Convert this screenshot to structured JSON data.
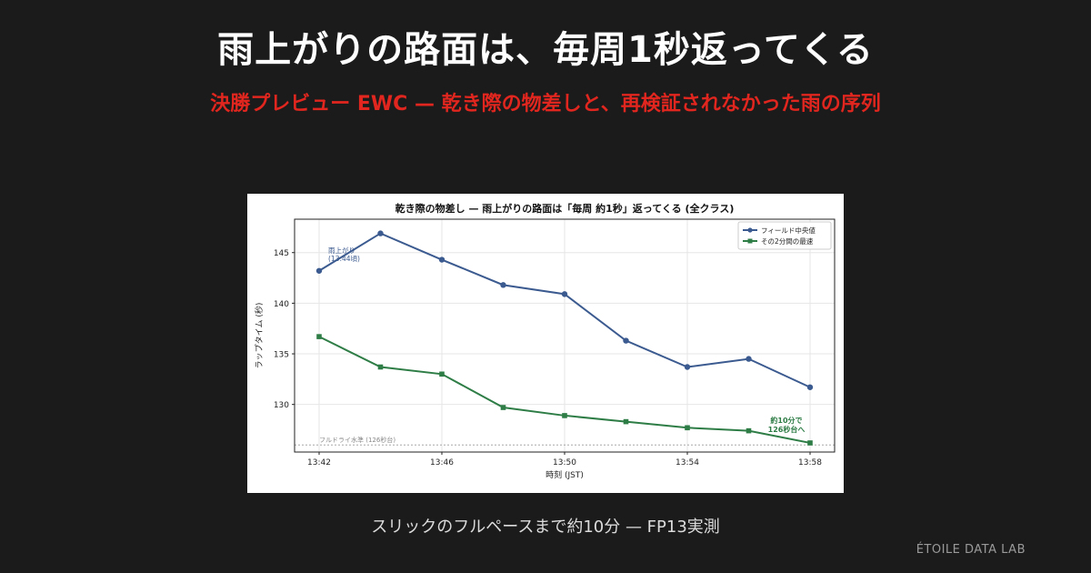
{
  "header": {
    "title": "雨上がりの路面は、毎周1秒返ってくる",
    "subtitle": "決勝プレビュー EWC — 乾き際の物差しと、再検証されなかった雨の序列"
  },
  "caption": "スリックのフルペースまで約10分 — FP13実測",
  "brand": "ÉTOILE DATA LAB",
  "colors": {
    "field_median": "#3b5a8f",
    "fastest": "#2e7d46",
    "baseline": "#999999"
  },
  "chart_data": {
    "type": "line",
    "title": "乾き際の物差し — 雨上がりの路面は「毎周 約1秒」返ってくる (全クラス)",
    "xlabel": "時刻 (JST)",
    "ylabel": "ラップタイム (秒)",
    "x": [
      "13:42",
      "13:44",
      "13:46",
      "13:48",
      "13:50",
      "13:52",
      "13:54",
      "13:56",
      "13:58"
    ],
    "xticks": [
      "13:42",
      "13:46",
      "13:50",
      "13:54",
      "13:58"
    ],
    "yticks": [
      130,
      135,
      140,
      145
    ],
    "ylim": [
      125.3,
      148.3
    ],
    "grid": true,
    "legend_position": "top-right",
    "series": [
      {
        "name": "フィールド中央値",
        "marker": "circle",
        "values": [
          143.2,
          146.9,
          144.3,
          141.8,
          140.9,
          136.3,
          133.7,
          134.5,
          131.7
        ]
      },
      {
        "name": "その2分間の最速",
        "marker": "square",
        "values": [
          136.7,
          133.7,
          133.0,
          129.7,
          128.9,
          128.3,
          127.7,
          127.4,
          126.2
        ]
      }
    ],
    "baseline": {
      "value": 126,
      "label": "フルドライ水準 (126秒台)"
    },
    "annotations": [
      {
        "text": [
          "雨上がり",
          "(13:44頃)"
        ],
        "series": "フィールド中央値"
      },
      {
        "text": [
          "約10分で",
          "126秒台へ"
        ],
        "series": "その2分間の最速"
      }
    ]
  }
}
